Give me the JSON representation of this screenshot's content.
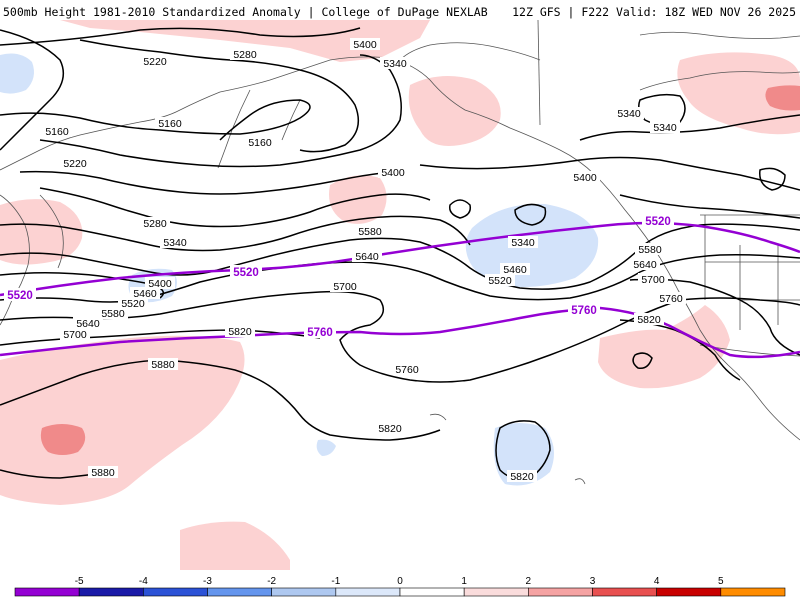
{
  "header": {
    "left_title": "500mb Height 1981-2010 Standardized Anomaly | College of DuPage NEXLAB",
    "right_title": "12Z GFS | F222 Valid: 18Z WED NOV 26 2025"
  },
  "contours": {
    "black_labels": [
      {
        "text": "5400"
      },
      {
        "text": "5340"
      },
      {
        "text": "5280"
      },
      {
        "text": "5220"
      },
      {
        "text": "5160"
      },
      {
        "text": "5160"
      },
      {
        "text": "5160"
      },
      {
        "text": "5220"
      },
      {
        "text": "5280"
      },
      {
        "text": "5340"
      },
      {
        "text": "5400"
      },
      {
        "text": "5460"
      },
      {
        "text": "5520"
      },
      {
        "text": "5580"
      },
      {
        "text": "5640"
      },
      {
        "text": "5700"
      },
      {
        "text": "5820"
      },
      {
        "text": "5880"
      },
      {
        "text": "5880"
      },
      {
        "text": "5400"
      },
      {
        "text": "5580"
      },
      {
        "text": "5640"
      },
      {
        "text": "5340"
      },
      {
        "text": "5460"
      },
      {
        "text": "5520"
      },
      {
        "text": "5700"
      },
      {
        "text": "5760"
      },
      {
        "text": "5820"
      },
      {
        "text": "5400"
      },
      {
        "text": "5340"
      },
      {
        "text": "5340"
      },
      {
        "text": "5580"
      },
      {
        "text": "5640"
      },
      {
        "text": "5700"
      },
      {
        "text": "5760"
      },
      {
        "text": "5820"
      },
      {
        "text": "5820"
      }
    ],
    "purple_labels": [
      {
        "text": "5520"
      },
      {
        "text": "5520"
      },
      {
        "text": "5520"
      },
      {
        "text": "5760"
      },
      {
        "text": "5760"
      }
    ],
    "purple_color": "#9400d3"
  },
  "colorbar": {
    "ticks": [
      "-5",
      "-4",
      "-3",
      "-2",
      "-1",
      "0",
      "1",
      "2",
      "3",
      "4",
      "5"
    ],
    "colors": [
      "#9400d3",
      "#1a1aa8",
      "#2b52d6",
      "#6495ed",
      "#aec8f0",
      "#dce8fa",
      "#ffffff",
      "#fadcdc",
      "#f5a3a3",
      "#e85050",
      "#c80000",
      "#ff8c00"
    ]
  }
}
